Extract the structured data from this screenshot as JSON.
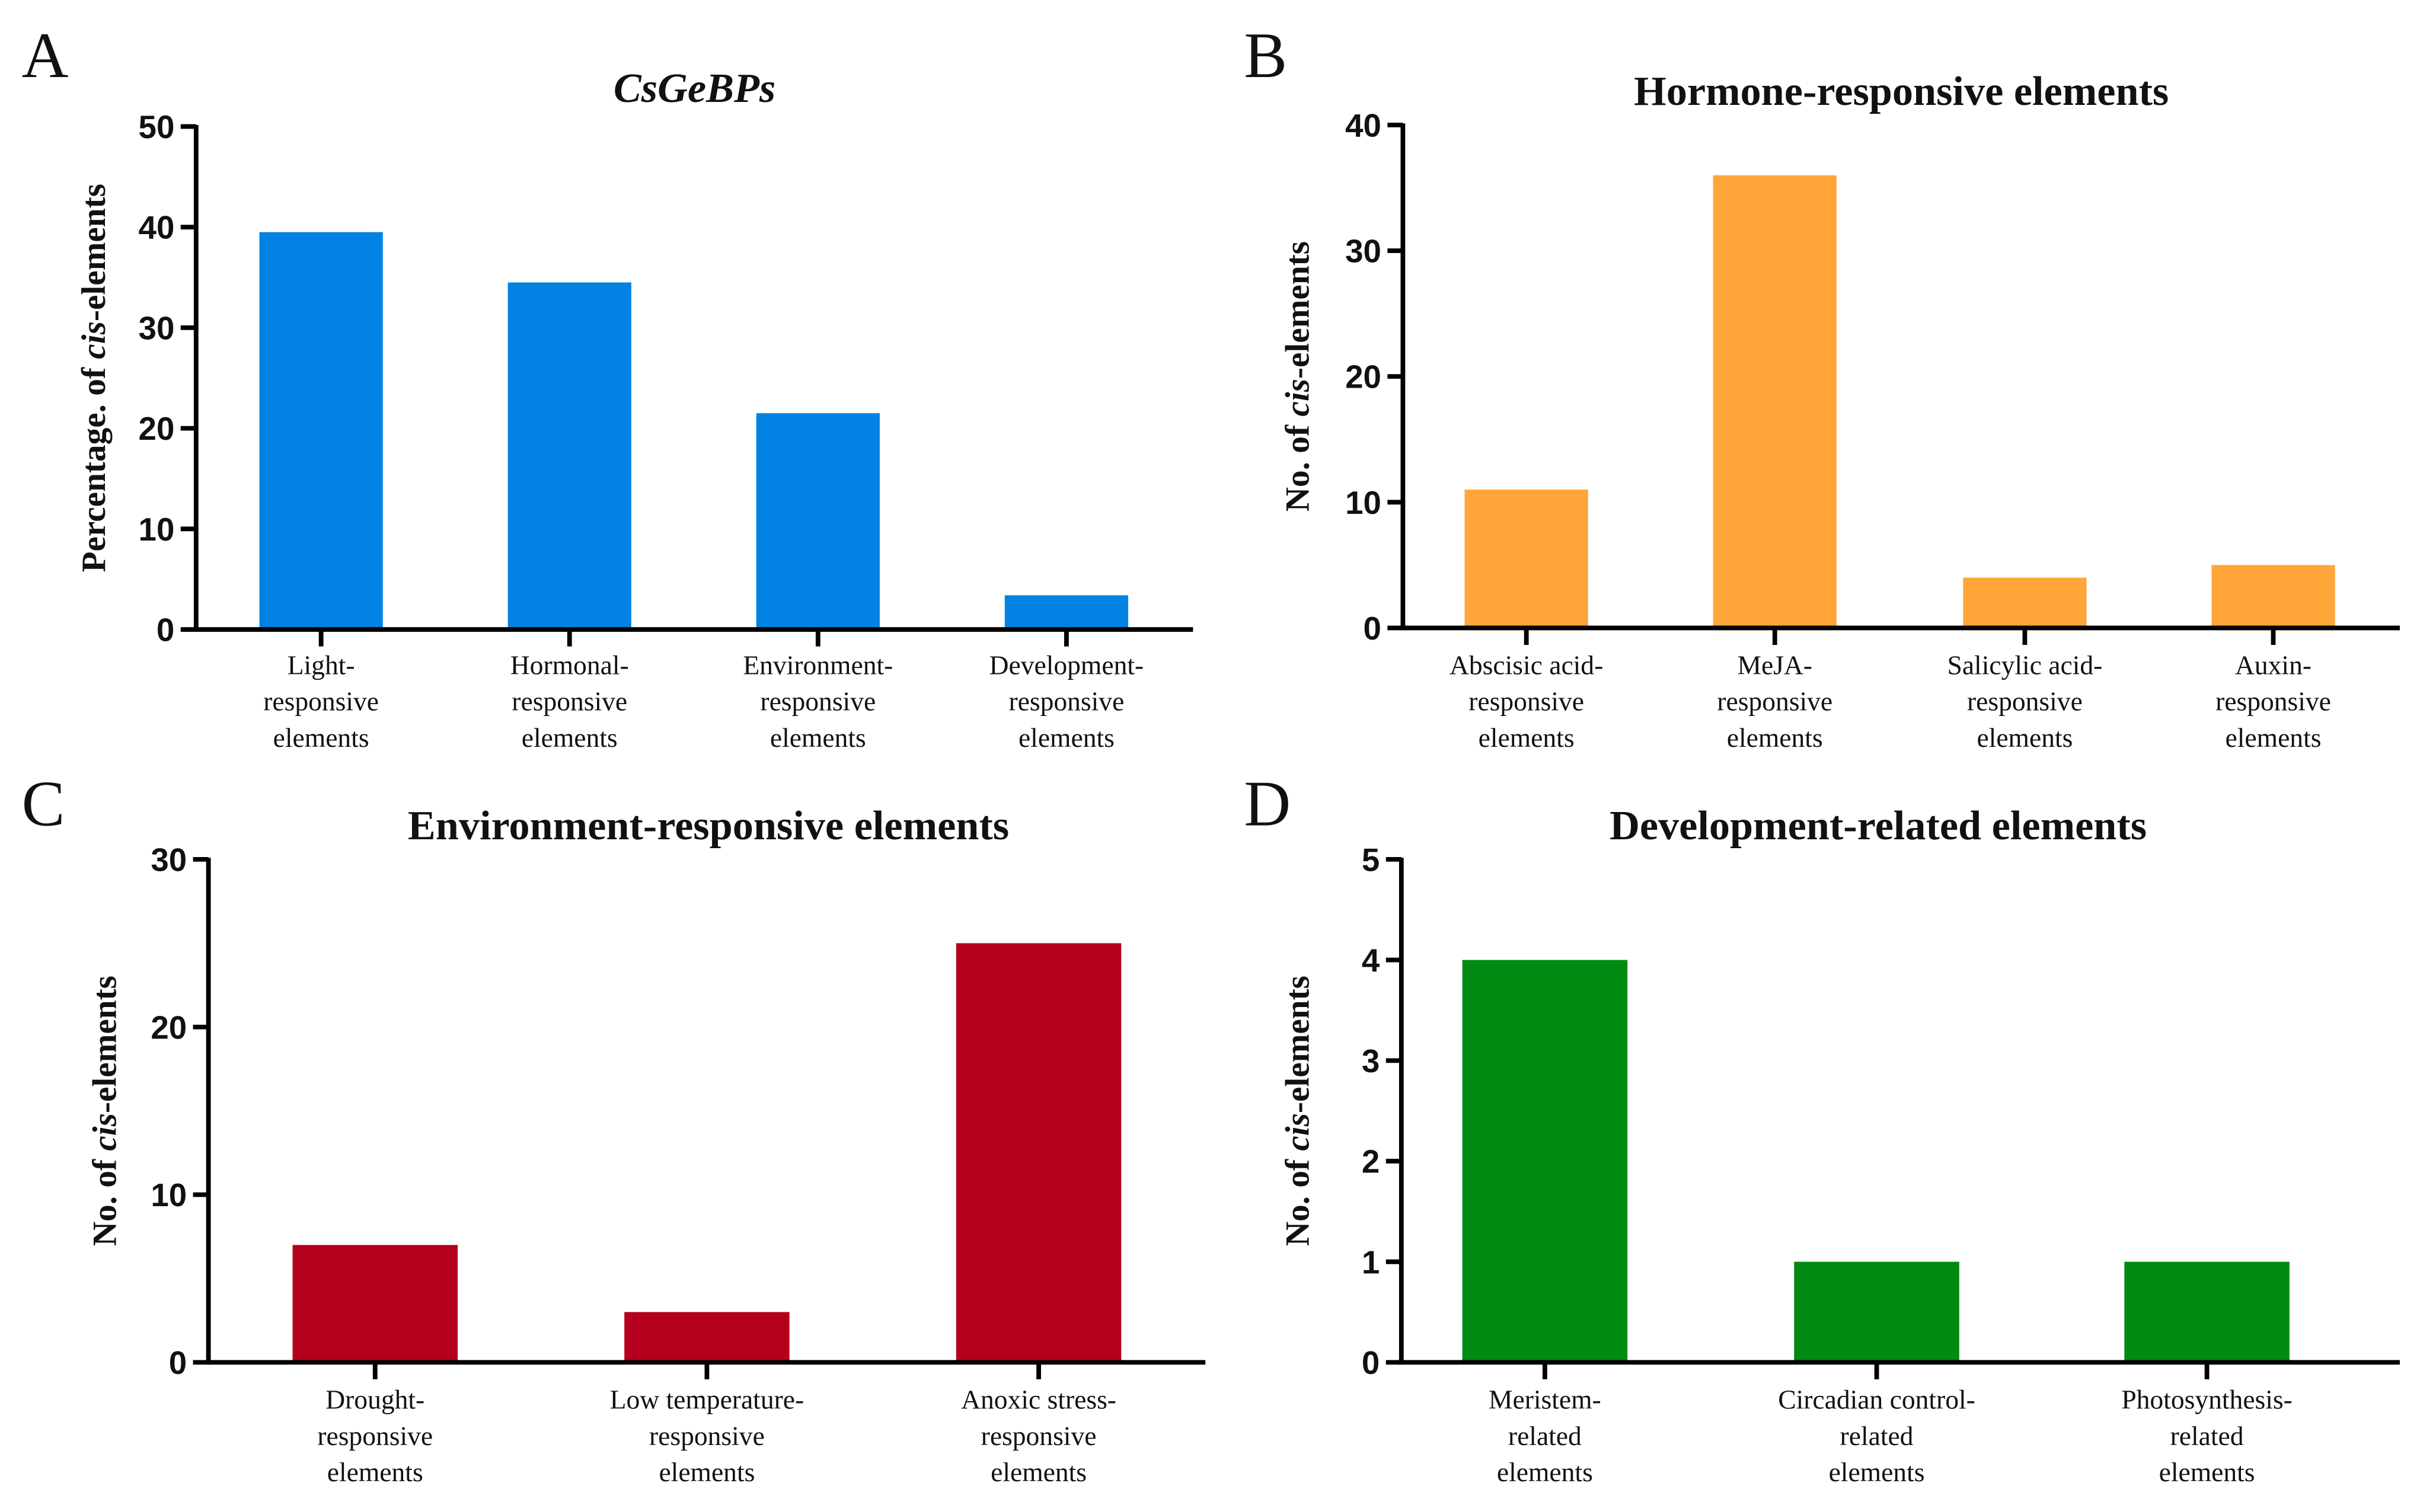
{
  "chart_data": [
    {
      "panel": "A",
      "type": "bar",
      "title": "CsGeBPs",
      "ylabel_parts": [
        "Percentage. of ",
        "cis",
        "-elements"
      ],
      "xlabel": "",
      "categories": [
        [
          "Light-",
          "responsive",
          "elements"
        ],
        [
          "Hormonal-",
          "responsive",
          "elements"
        ],
        [
          "Environment-",
          "responsive",
          "elements"
        ],
        [
          "Development-",
          "responsive",
          "elements"
        ]
      ],
      "values": [
        39.5,
        34.5,
        21.5,
        3.4
      ],
      "ylim": [
        0,
        50
      ],
      "yticks": [
        0,
        10,
        20,
        30,
        40,
        50
      ],
      "color": "#0283e3",
      "grid": false
    },
    {
      "panel": "B",
      "type": "bar",
      "title": "Hormone-responsive elements",
      "ylabel_parts": [
        "No. of ",
        "cis",
        "-elements"
      ],
      "xlabel": "",
      "categories": [
        [
          "Abscisic acid-",
          "responsive",
          "elements"
        ],
        [
          "MeJA-",
          "responsive",
          "elements"
        ],
        [
          "Salicylic acid-",
          "responsive",
          "elements"
        ],
        [
          "Auxin-",
          "responsive",
          "elements"
        ]
      ],
      "values": [
        11,
        36,
        4,
        5
      ],
      "ylim": [
        0,
        40
      ],
      "yticks": [
        0,
        10,
        20,
        30,
        40
      ],
      "color": "#ffa53a",
      "grid": false
    },
    {
      "panel": "C",
      "type": "bar",
      "title": "Environment-responsive elements",
      "ylabel_parts": [
        "No. of ",
        "cis",
        "-elements"
      ],
      "xlabel": "",
      "categories": [
        [
          "Drought-",
          "responsive",
          "elements"
        ],
        [
          "Low temperature-",
          "responsive",
          "elements"
        ],
        [
          "Anoxic stress-",
          "responsive",
          "elements"
        ]
      ],
      "values": [
        7,
        3,
        25
      ],
      "ylim": [
        0,
        30
      ],
      "yticks": [
        0,
        10,
        20,
        30
      ],
      "color": "#b5001e",
      "grid": false
    },
    {
      "panel": "D",
      "type": "bar",
      "title": "Development-related elements",
      "ylabel_parts": [
        "No. of ",
        "cis",
        "-elements"
      ],
      "xlabel": "",
      "categories": [
        [
          "Meristem-",
          "related",
          "elements"
        ],
        [
          "Circadian control-",
          "related",
          "elements"
        ],
        [
          "Photosynthesis-",
          "related",
          "elements"
        ]
      ],
      "values": [
        4,
        1,
        1
      ],
      "ylim": [
        0,
        5
      ],
      "yticks": [
        0,
        1,
        2,
        3,
        4,
        5
      ],
      "color": "#008a12",
      "grid": false
    }
  ]
}
